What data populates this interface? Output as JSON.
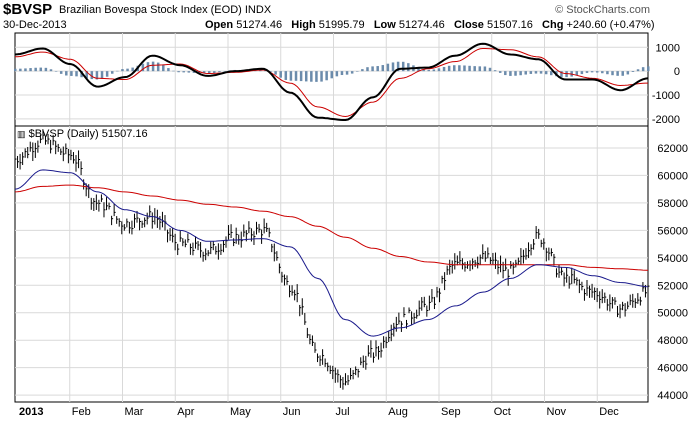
{
  "header": {
    "symbol": "$BVSP",
    "title": "Brazilian Bovespa Stock Index (EOD)",
    "exchange": "INDX",
    "source": "© StockCharts.com",
    "date": "30-Dec-2013",
    "open_label": "Open",
    "open": "51274.46",
    "high_label": "High",
    "high": "51995.79",
    "low_label": "Low",
    "low": "51274.46",
    "close_label": "Close",
    "close": "51507.16",
    "chg_label": "Chg",
    "chg": "+240.60 (+0.47%)"
  },
  "price_panel_label": "$BVSP (Daily) 51507.16",
  "colors": {
    "price_bars": "#000000",
    "ma_short": "#1a1a8c",
    "ma_long": "#cc0000",
    "macd_line": "#000000",
    "signal_line": "#cc0000",
    "histogram": "#6b8bab",
    "grid": "#d9d9d9"
  },
  "chart_data": [
    {
      "type": "line",
      "panel": "MACD",
      "y_ticks": [
        "1000",
        "0",
        "-1000",
        "-2000"
      ],
      "ylim": [
        -2300,
        1600
      ],
      "x": [
        "Jan",
        "Jan",
        "Feb",
        "Feb",
        "Mar",
        "Mar",
        "Apr",
        "Apr",
        "May",
        "May",
        "Jun",
        "Jun",
        "Jul",
        "Jul",
        "Aug",
        "Aug",
        "Sep",
        "Sep",
        "Oct",
        "Oct",
        "Nov",
        "Nov",
        "Dec",
        "Dec"
      ],
      "series": [
        {
          "role": "macd",
          "values": [
            700,
            950,
            300,
            -650,
            -250,
            650,
            250,
            -200,
            0,
            100,
            -900,
            -1950,
            -2050,
            -1100,
            100,
            150,
            650,
            1150,
            700,
            500,
            -350,
            -350,
            -800,
            -300
          ]
        },
        {
          "role": "signal",
          "values": [
            600,
            800,
            500,
            -300,
            -350,
            250,
            300,
            -100,
            -50,
            50,
            -500,
            -1500,
            -1900,
            -1300,
            -300,
            100,
            400,
            950,
            900,
            600,
            -100,
            -300,
            -600,
            -500
          ]
        },
        {
          "role": "histogram",
          "values": [
            100,
            150,
            -200,
            -350,
            100,
            400,
            -50,
            -100,
            50,
            50,
            -400,
            -450,
            -150,
            200,
            400,
            50,
            250,
            200,
            -200,
            -100,
            -250,
            -50,
            -200,
            200
          ]
        }
      ]
    },
    {
      "type": "line",
      "panel": "price",
      "title": "$BVSP (Daily) 51507.16",
      "y_ticks": [
        "62000",
        "60000",
        "58000",
        "56000",
        "54000",
        "52000",
        "50000",
        "48000",
        "46000",
        "44000"
      ],
      "ylim": [
        43500,
        63600
      ],
      "x_ticks": [
        "2013",
        "Feb",
        "Mar",
        "Apr",
        "May",
        "Jun",
        "Jul",
        "Aug",
        "Sep",
        "Oct",
        "Nov",
        "Dec"
      ],
      "x": [
        "Jan",
        "Jan",
        "Feb",
        "Feb",
        "Mar",
        "Mar",
        "Apr",
        "Apr",
        "May",
        "May",
        "Jun",
        "Jun",
        "Jul",
        "Jul",
        "Aug",
        "Aug",
        "Sep",
        "Sep",
        "Oct",
        "Oct",
        "Nov",
        "Nov",
        "Dec",
        "Dec"
      ],
      "series": [
        {
          "role": "price",
          "values": [
            61200,
            62500,
            61500,
            58000,
            56500,
            57000,
            55000,
            54500,
            55500,
            56000,
            52000,
            47000,
            45000,
            47000,
            49500,
            50500,
            53500,
            54000,
            53000,
            55500,
            52500,
            51500,
            50300,
            51500
          ]
        },
        {
          "role": "ma_short",
          "values": [
            59000,
            60400,
            60200,
            58800,
            57500,
            57000,
            56000,
            55200,
            55300,
            55400,
            54800,
            52500,
            49500,
            48300,
            48900,
            49500,
            50500,
            51500,
            52500,
            53500,
            53300,
            52700,
            52200,
            51900
          ]
        },
        {
          "role": "ma_long",
          "values": [
            58800,
            59200,
            59300,
            59100,
            58800,
            58500,
            58200,
            57900,
            57700,
            57400,
            57000,
            56300,
            55500,
            54700,
            54100,
            53700,
            53500,
            53500,
            53500,
            53500,
            53500,
            53300,
            53200,
            53100
          ]
        }
      ]
    }
  ]
}
